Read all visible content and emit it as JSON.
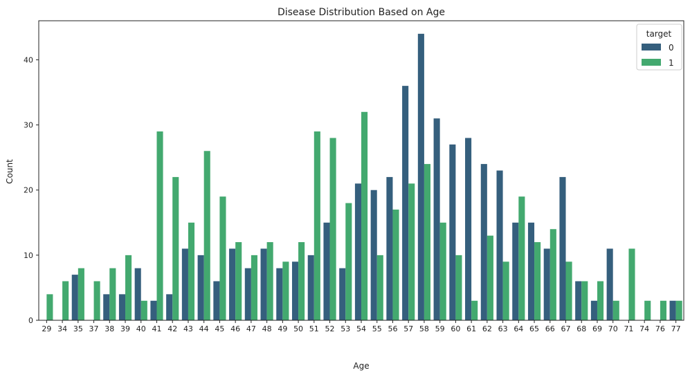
{
  "chart_data": {
    "type": "bar",
    "title": "Disease Distribution Based on Age",
    "xlabel": "Age",
    "ylabel": "Count",
    "ylim": [
      0,
      46
    ],
    "yticks": [
      0,
      10,
      20,
      30,
      40
    ],
    "grid": false,
    "legend": {
      "title": "target",
      "placement": "top-right"
    },
    "categories": [
      "29",
      "34",
      "35",
      "37",
      "38",
      "39",
      "40",
      "41",
      "42",
      "43",
      "44",
      "45",
      "46",
      "47",
      "48",
      "49",
      "50",
      "51",
      "52",
      "53",
      "54",
      "55",
      "56",
      "57",
      "58",
      "59",
      "60",
      "61",
      "62",
      "63",
      "64",
      "65",
      "66",
      "67",
      "68",
      "69",
      "70",
      "71",
      "74",
      "76",
      "77"
    ],
    "series": [
      {
        "name": "0",
        "color": "#355f7d",
        "values": [
          0,
          0,
          7,
          0,
          4,
          4,
          8,
          3,
          4,
          11,
          10,
          6,
          11,
          8,
          11,
          8,
          9,
          10,
          15,
          8,
          21,
          20,
          22,
          36,
          44,
          31,
          27,
          28,
          24,
          23,
          15,
          15,
          11,
          22,
          6,
          3,
          11,
          0,
          0,
          0,
          3
        ]
      },
      {
        "name": "1",
        "color": "#43a96f",
        "values": [
          4,
          6,
          8,
          6,
          8,
          10,
          3,
          29,
          22,
          15,
          26,
          19,
          12,
          10,
          12,
          9,
          12,
          29,
          28,
          18,
          32,
          10,
          17,
          21,
          24,
          15,
          10,
          3,
          13,
          9,
          19,
          12,
          14,
          9,
          6,
          6,
          3,
          11,
          3,
          3,
          3
        ]
      }
    ]
  }
}
